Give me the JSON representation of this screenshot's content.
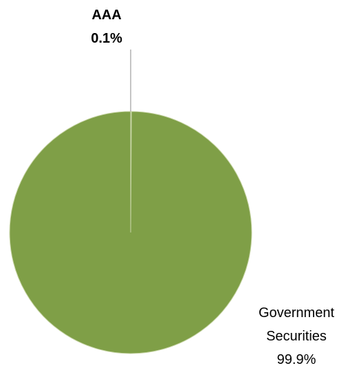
{
  "chart_data": {
    "type": "pie",
    "slices": [
      {
        "label": "AAA",
        "value": 0.1,
        "percent_label": "0.1%",
        "color": "#7f9f47"
      },
      {
        "label": "Government Securities",
        "label_lines": [
          "Government",
          "Securities"
        ],
        "value": 99.9,
        "percent_label": "99.9%",
        "color": "#7f9f47"
      }
    ],
    "start_angle_deg": 0,
    "direction": "clockwise",
    "slice_border_color": "#c9d6a8"
  }
}
